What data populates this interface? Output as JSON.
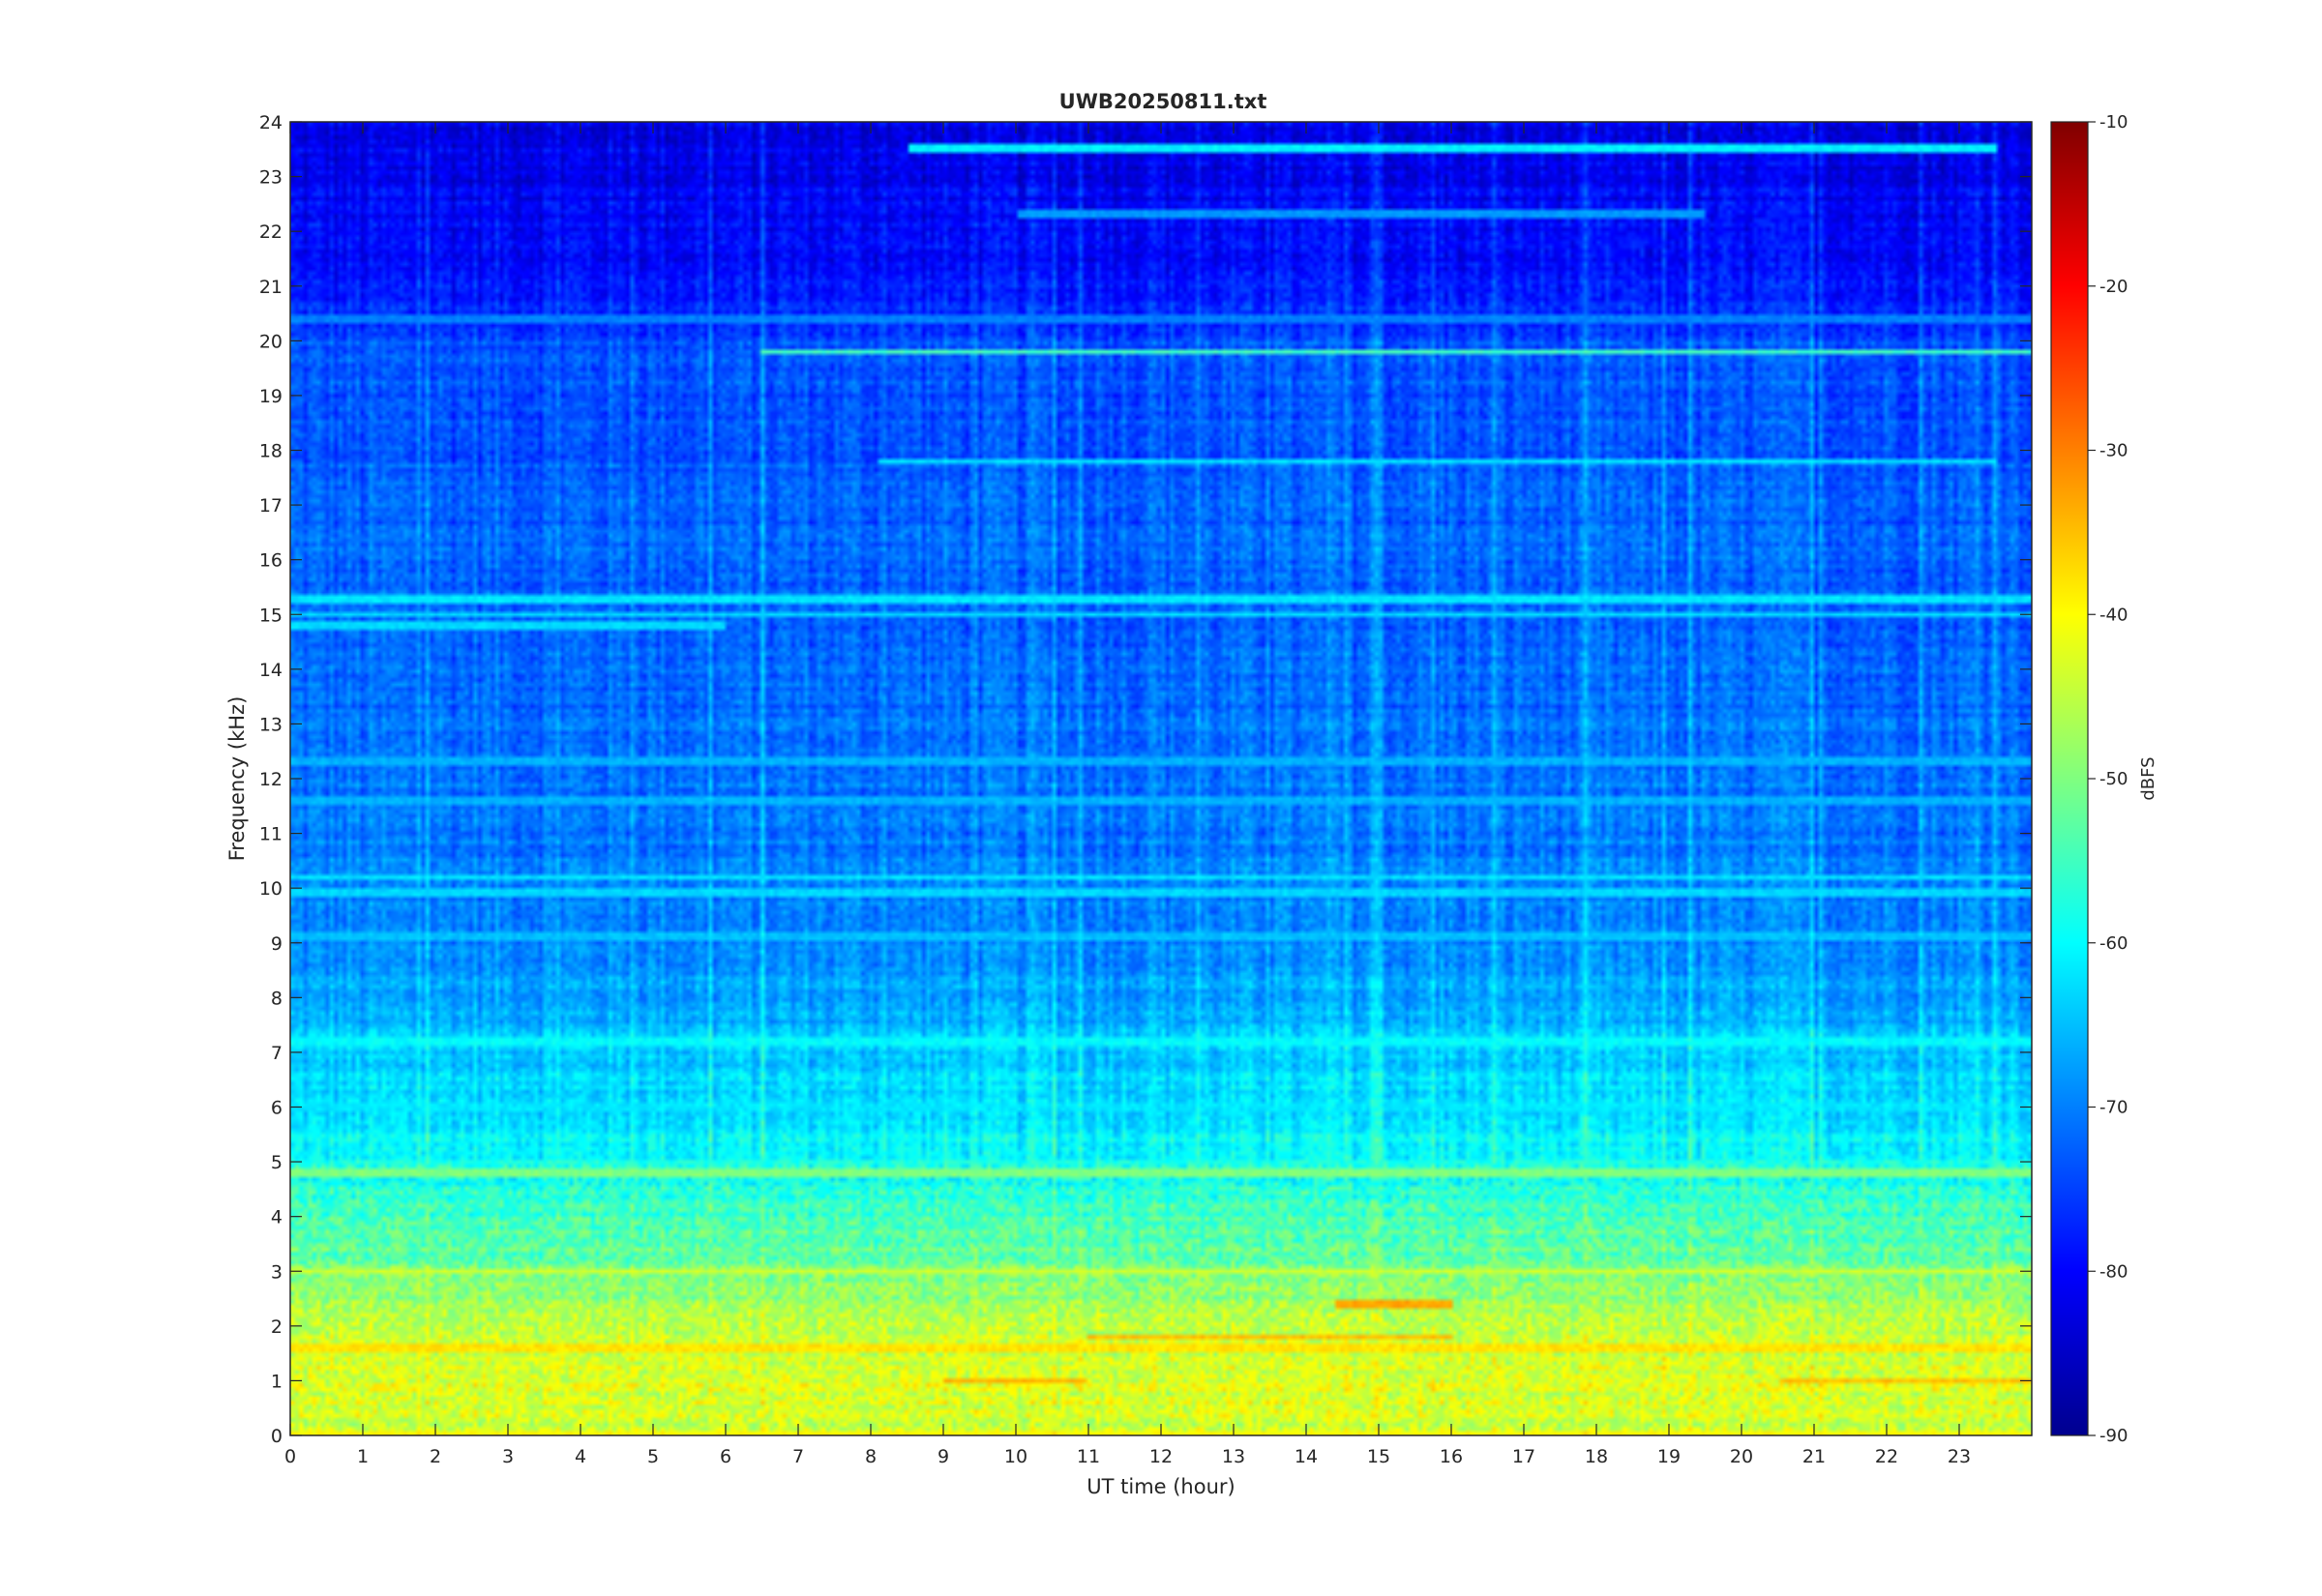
{
  "chart_data": {
    "type": "heatmap",
    "title": "UWB20250811.txt",
    "xlabel": "UT time (hour)",
    "ylabel": "Frequency (kHz)",
    "xlim": [
      0,
      24
    ],
    "ylim": [
      0,
      24
    ],
    "x_ticks": [
      "0",
      "1",
      "2",
      "3",
      "4",
      "5",
      "6",
      "7",
      "8",
      "9",
      "10",
      "11",
      "12",
      "13",
      "14",
      "15",
      "16",
      "17",
      "18",
      "19",
      "20",
      "21",
      "22",
      "23"
    ],
    "y_ticks": [
      "0",
      "1",
      "2",
      "3",
      "4",
      "5",
      "6",
      "7",
      "8",
      "9",
      "10",
      "11",
      "12",
      "13",
      "14",
      "15",
      "16",
      "17",
      "18",
      "19",
      "20",
      "21",
      "22",
      "23",
      "24"
    ],
    "colormap": "jet",
    "colorbar": {
      "label": "dBFS",
      "clim": [
        -90,
        -10
      ],
      "ticks": [
        "-10",
        "-20",
        "-30",
        "-40",
        "-50",
        "-60",
        "-70",
        "-80",
        "-90"
      ]
    },
    "background_profile": {
      "freq_khz": [
        0,
        1,
        2,
        3,
        4,
        5,
        6,
        7,
        8,
        9,
        10,
        12,
        14,
        16,
        18,
        20,
        21,
        22,
        24
      ],
      "level_dbfs": [
        -44,
        -43,
        -45,
        -51,
        -55,
        -59,
        -63,
        -64,
        -67,
        -69,
        -70,
        -71,
        -72,
        -72,
        -73,
        -74,
        -79,
        -80,
        -82
      ]
    },
    "tonal_lines": [
      {
        "freq_khz": 23.5,
        "t_start": 8.5,
        "t_end": 23.5,
        "level_dbfs": -61
      },
      {
        "freq_khz": 22.3,
        "t_start": 10.0,
        "t_end": 19.5,
        "level_dbfs": -68
      },
      {
        "freq_khz": 20.4,
        "t_start": 0.0,
        "t_end": 24.0,
        "level_dbfs": -70
      },
      {
        "freq_khz": 19.8,
        "t_start": 6.5,
        "t_end": 24.0,
        "level_dbfs": -55
      },
      {
        "freq_khz": 17.8,
        "t_start": 8.1,
        "t_end": 23.5,
        "level_dbfs": -62
      },
      {
        "freq_khz": 15.3,
        "t_start": 0.0,
        "t_end": 24.0,
        "level_dbfs": -62
      },
      {
        "freq_khz": 15.0,
        "t_start": 0.0,
        "t_end": 24.0,
        "level_dbfs": -63
      },
      {
        "freq_khz": 14.8,
        "t_start": 0.0,
        "t_end": 6.0,
        "level_dbfs": -63
      },
      {
        "freq_khz": 12.3,
        "t_start": 0.0,
        "t_end": 24.0,
        "level_dbfs": -66
      },
      {
        "freq_khz": 11.6,
        "t_start": 0.0,
        "t_end": 24.0,
        "level_dbfs": -66
      },
      {
        "freq_khz": 10.2,
        "t_start": 0.0,
        "t_end": 24.0,
        "level_dbfs": -62
      },
      {
        "freq_khz": 9.9,
        "t_start": 0.0,
        "t_end": 24.0,
        "level_dbfs": -63
      },
      {
        "freq_khz": 9.1,
        "t_start": 0.0,
        "t_end": 24.0,
        "level_dbfs": -65
      },
      {
        "freq_khz": 7.2,
        "t_start": 0.0,
        "t_end": 24.0,
        "level_dbfs": -60
      },
      {
        "freq_khz": 6.0,
        "t_start": 0.0,
        "t_end": 24.0,
        "level_dbfs": -62
      },
      {
        "freq_khz": 4.8,
        "t_start": 0.0,
        "t_end": 24.0,
        "level_dbfs": -50
      },
      {
        "freq_khz": 3.0,
        "t_start": 0.0,
        "t_end": 24.0,
        "level_dbfs": -44
      },
      {
        "freq_khz": 2.4,
        "t_start": 14.4,
        "t_end": 16.0,
        "level_dbfs": -33
      },
      {
        "freq_khz": 1.8,
        "t_start": 11.0,
        "t_end": 16.0,
        "level_dbfs": -35
      },
      {
        "freq_khz": 1.6,
        "t_start": 0.0,
        "t_end": 24.0,
        "level_dbfs": -38
      },
      {
        "freq_khz": 1.0,
        "t_start": 9.0,
        "t_end": 11.0,
        "level_dbfs": -34
      },
      {
        "freq_khz": 1.0,
        "t_start": 20.5,
        "t_end": 24.0,
        "level_dbfs": -35
      },
      {
        "freq_khz": 0.05,
        "t_start": 0.0,
        "t_end": 24.0,
        "level_dbfs": -40
      }
    ]
  }
}
